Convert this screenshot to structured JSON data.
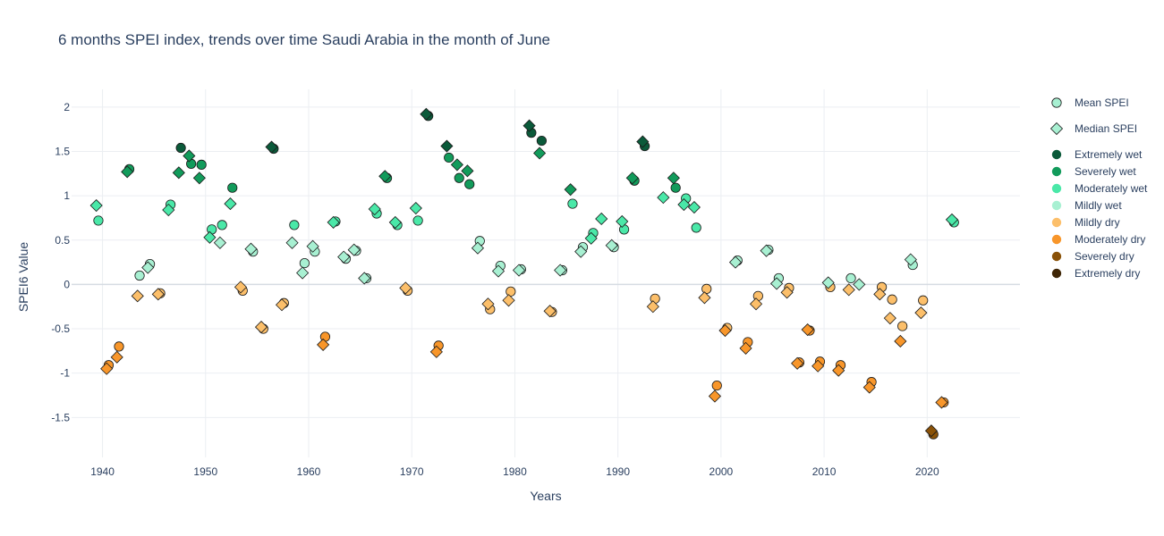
{
  "chart_data": {
    "type": "scatter",
    "title": "6 months SPEI index, trends over time Saudi Arabia in the month of June",
    "xlabel": "Years",
    "ylabel": "SPEI6 Value",
    "xlim": [
      1937,
      2029
    ],
    "ylim": [
      -1.95,
      2.2
    ],
    "xticks": [
      1940,
      1950,
      1960,
      1970,
      1980,
      1990,
      2000,
      2010,
      2020
    ],
    "yticks": [
      -1.5,
      -1,
      -0.5,
      0,
      0.5,
      1,
      1.5,
      2
    ],
    "grid": true,
    "legend_position": "right",
    "series": [
      {
        "name": "Mean SPEI",
        "marker": "circle",
        "x_offset": -0.4,
        "points": [
          [
            1940,
            0.72
          ],
          [
            1941,
            -0.91
          ],
          [
            1942,
            -0.7
          ],
          [
            1943,
            1.3
          ],
          [
            1944,
            0.1
          ],
          [
            1945,
            0.23
          ],
          [
            1946,
            -0.1
          ],
          [
            1947,
            0.9
          ],
          [
            1948,
            1.54
          ],
          [
            1949,
            1.36
          ],
          [
            1950,
            1.35
          ],
          [
            1951,
            0.62
          ],
          [
            1952,
            0.67
          ],
          [
            1953,
            1.09
          ],
          [
            1954,
            -0.07
          ],
          [
            1955,
            0.37
          ],
          [
            1956,
            -0.5
          ],
          [
            1957,
            1.53
          ],
          [
            1958,
            -0.21
          ],
          [
            1959,
            0.67
          ],
          [
            1960,
            0.24
          ],
          [
            1961,
            0.37
          ],
          [
            1962,
            -0.59
          ],
          [
            1963,
            0.71
          ],
          [
            1964,
            0.29
          ],
          [
            1965,
            0.38
          ],
          [
            1966,
            0.07
          ],
          [
            1967,
            0.8
          ],
          [
            1968,
            1.2
          ],
          [
            1969,
            0.67
          ],
          [
            1970,
            -0.07
          ],
          [
            1971,
            0.72
          ],
          [
            1972,
            1.9
          ],
          [
            1973,
            -0.69
          ],
          [
            1974,
            1.43
          ],
          [
            1975,
            1.2
          ],
          [
            1976,
            1.13
          ],
          [
            1977,
            0.49
          ],
          [
            1978,
            -0.28
          ],
          [
            1979,
            0.21
          ],
          [
            1980,
            -0.08
          ],
          [
            1981,
            0.17
          ],
          [
            1982,
            1.71
          ],
          [
            1983,
            1.62
          ],
          [
            1984,
            -0.31
          ],
          [
            1985,
            0.16
          ],
          [
            1986,
            0.91
          ],
          [
            1987,
            0.42
          ],
          [
            1988,
            0.58
          ],
          [
            1990,
            0.42
          ],
          [
            1991,
            0.62
          ],
          [
            1992,
            1.17
          ],
          [
            1993,
            1.56
          ],
          [
            1994,
            -0.16
          ],
          [
            1996,
            1.09
          ],
          [
            1997,
            0.97
          ],
          [
            1998,
            0.64
          ],
          [
            1999,
            -0.05
          ],
          [
            2000,
            -1.14
          ],
          [
            2001,
            -0.49
          ],
          [
            2002,
            0.27
          ],
          [
            2003,
            -0.65
          ],
          [
            2004,
            -0.13
          ],
          [
            2005,
            0.39
          ],
          [
            2006,
            0.07
          ],
          [
            2007,
            -0.04
          ],
          [
            2008,
            -0.88
          ],
          [
            2009,
            -0.52
          ],
          [
            2010,
            -0.87
          ],
          [
            2011,
            -0.03
          ],
          [
            2012,
            -0.91
          ],
          [
            2013,
            0.07
          ],
          [
            2015,
            -1.1
          ],
          [
            2016,
            -0.03
          ],
          [
            2017,
            -0.17
          ],
          [
            2018,
            -0.47
          ],
          [
            2019,
            0.22
          ],
          [
            2020,
            -0.18
          ],
          [
            2021,
            -1.69
          ],
          [
            2022,
            -1.33
          ],
          [
            2023,
            0.7
          ]
        ]
      },
      {
        "name": "Median SPEI",
        "marker": "diamond",
        "x_offset": 0.4,
        "points": [
          [
            1939,
            0.89
          ],
          [
            1940,
            -0.95
          ],
          [
            1941,
            -0.82
          ],
          [
            1942,
            1.27
          ],
          [
            1943,
            -0.13
          ],
          [
            1944,
            0.19
          ],
          [
            1945,
            -0.11
          ],
          [
            1946,
            0.84
          ],
          [
            1947,
            1.26
          ],
          [
            1948,
            1.45
          ],
          [
            1949,
            1.2
          ],
          [
            1950,
            0.53
          ],
          [
            1951,
            0.47
          ],
          [
            1952,
            0.91
          ],
          [
            1953,
            -0.03
          ],
          [
            1954,
            0.4
          ],
          [
            1955,
            -0.48
          ],
          [
            1956,
            1.55
          ],
          [
            1957,
            -0.23
          ],
          [
            1958,
            0.47
          ],
          [
            1959,
            0.13
          ],
          [
            1960,
            0.43
          ],
          [
            1961,
            -0.68
          ],
          [
            1962,
            0.7
          ],
          [
            1963,
            0.31
          ],
          [
            1964,
            0.39
          ],
          [
            1965,
            0.07
          ],
          [
            1966,
            0.85
          ],
          [
            1967,
            1.22
          ],
          [
            1968,
            0.7
          ],
          [
            1969,
            -0.04
          ],
          [
            1970,
            0.86
          ],
          [
            1971,
            1.92
          ],
          [
            1972,
            -0.76
          ],
          [
            1973,
            1.56
          ],
          [
            1974,
            1.35
          ],
          [
            1975,
            1.28
          ],
          [
            1976,
            0.41
          ],
          [
            1977,
            -0.22
          ],
          [
            1978,
            0.15
          ],
          [
            1979,
            -0.18
          ],
          [
            1980,
            0.16
          ],
          [
            1981,
            1.79
          ],
          [
            1982,
            1.48
          ],
          [
            1983,
            -0.3
          ],
          [
            1984,
            0.16
          ],
          [
            1985,
            1.07
          ],
          [
            1986,
            0.37
          ],
          [
            1987,
            0.52
          ],
          [
            1988,
            0.74
          ],
          [
            1989,
            0.44
          ],
          [
            1990,
            0.71
          ],
          [
            1991,
            1.2
          ],
          [
            1992,
            1.61
          ],
          [
            1993,
            -0.25
          ],
          [
            1994,
            0.98
          ],
          [
            1995,
            1.2
          ],
          [
            1996,
            0.9
          ],
          [
            1997,
            0.87
          ],
          [
            1998,
            -0.15
          ],
          [
            1999,
            -1.26
          ],
          [
            2000,
            -0.52
          ],
          [
            2001,
            0.25
          ],
          [
            2002,
            -0.72
          ],
          [
            2003,
            -0.22
          ],
          [
            2004,
            0.38
          ],
          [
            2005,
            0.01
          ],
          [
            2006,
            -0.09
          ],
          [
            2007,
            -0.89
          ],
          [
            2008,
            -0.51
          ],
          [
            2009,
            -0.92
          ],
          [
            2010,
            0.02
          ],
          [
            2011,
            -0.97
          ],
          [
            2012,
            -0.06
          ],
          [
            2013,
            0.0
          ],
          [
            2014,
            -1.16
          ],
          [
            2015,
            -0.11
          ],
          [
            2016,
            -0.38
          ],
          [
            2017,
            -0.64
          ],
          [
            2018,
            0.28
          ],
          [
            2019,
            -0.32
          ],
          [
            2020,
            -1.65
          ],
          [
            2021,
            -1.33
          ],
          [
            2022,
            0.73
          ]
        ]
      }
    ],
    "categories": [
      {
        "name": "Extremely wet",
        "min": 1.5,
        "max": 99,
        "color": "#0b5a3a"
      },
      {
        "name": "Severely wet",
        "min": 1.0,
        "max": 1.5,
        "color": "#129b5b"
      },
      {
        "name": "Moderately wet",
        "min": 0.5,
        "max": 1.0,
        "color": "#4ae8a8"
      },
      {
        "name": "Mildly wet",
        "min": 0.0,
        "max": 0.5,
        "color": "#a8f0d2"
      },
      {
        "name": "Mildly dry",
        "min": -0.5,
        "max": 0.0,
        "color": "#fcbf6a"
      },
      {
        "name": "Moderately dry",
        "min": -1.5,
        "max": -0.5,
        "color": "#f8962a"
      },
      {
        "name": "Severely dry",
        "min": -2.0,
        "max": -1.5,
        "color": "#8a5208"
      },
      {
        "name": "Extremely dry",
        "min": -99,
        "max": -2.0,
        "color": "#3f2606"
      }
    ],
    "colors": {
      "grid": "#ebeef2",
      "zeroline": "#d6dbe2",
      "text": "#2a3f5f",
      "marker_outline": "#1a1a1a"
    }
  }
}
